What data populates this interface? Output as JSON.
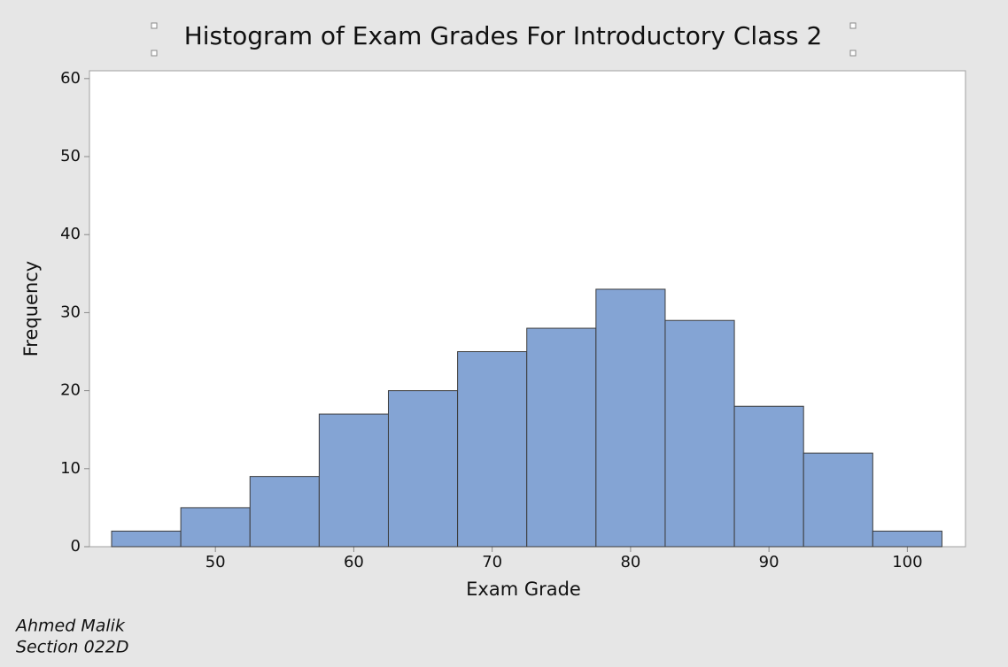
{
  "chart_data": {
    "type": "histogram",
    "title": "Histogram of Exam Grades For Introductory Class 2",
    "x_label": "Exam Grade",
    "y_label": "Frequency",
    "bins": [
      42.5,
      47.5,
      52.5,
      57.5,
      62.5,
      67.5,
      72.5,
      77.5,
      82.5,
      87.5,
      92.5,
      97.5,
      102.5
    ],
    "values": [
      2,
      5,
      9,
      17,
      20,
      25,
      28,
      33,
      29,
      18,
      12,
      2
    ],
    "color": "#84a4d4",
    "xlim": [
      40.9,
      104.2
    ],
    "xticks": [
      50,
      60,
      70,
      80,
      90,
      100
    ],
    "ylim": [
      0,
      61
    ],
    "yticks": [
      0,
      10,
      20,
      30,
      40,
      50,
      60
    ]
  },
  "footnote": {
    "author": "Ahmed Malik",
    "section": "Section 022D"
  }
}
